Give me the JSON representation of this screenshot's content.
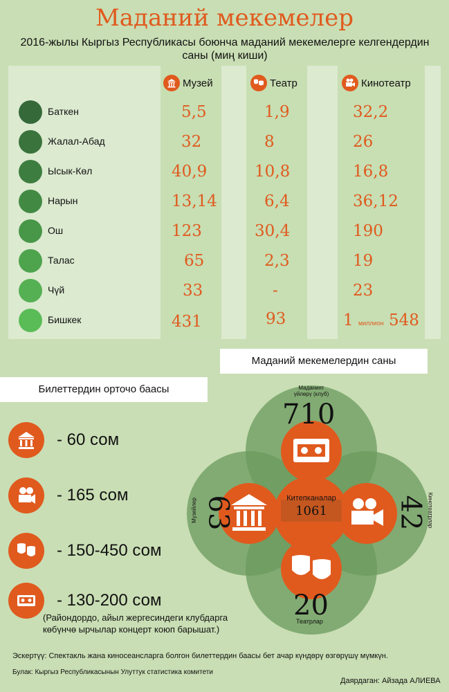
{
  "title": "Маданий мекемелер",
  "subtitle": "2016-жылы Кыргыз Республикасы боюнча маданий мекемелерге келгендердин саны (миң киши)",
  "columns": {
    "museum": "Музей",
    "theater": "Театр",
    "cinema": "Кинотеатр"
  },
  "rows": [
    {
      "region": "Баткен",
      "museum": "5,5",
      "theater": "1,9",
      "cinema": "32,2"
    },
    {
      "region": "Жалал-Абад",
      "museum": "32",
      "theater": "8",
      "cinema": "26"
    },
    {
      "region": "Ысык-Көл",
      "museum": "40,9",
      "theater": "10,8",
      "cinema": "16,8"
    },
    {
      "region": "Нарын",
      "museum": "13,14",
      "theater": "6,4",
      "cinema": "36,12"
    },
    {
      "region": "Ош",
      "museum": "123",
      "theater": "30,4",
      "cinema": "190"
    },
    {
      "region": "Талас",
      "museum": "65",
      "theater": "2,3",
      "cinema": "19"
    },
    {
      "region": "Чүй",
      "museum": "33",
      "theater": "-",
      "cinema": "23"
    },
    {
      "region": "Бишкек",
      "museum": "431",
      "theater": "93",
      "cinema_a": "1",
      "cinema_b": "миллион",
      "cinema_c": "548"
    }
  ],
  "dot_colors": [
    "#36693a",
    "#3a733c",
    "#3d7d3f",
    "#428a43",
    "#489647",
    "#4ea34d",
    "#55b053",
    "#5abc57"
  ],
  "counts": {
    "title": "Маданий мекемелердин саны",
    "clubs_label": "Маданият үйлөрү (клуб)",
    "clubs_value": "710",
    "museums_label": "Музейлер",
    "museums_value": "63",
    "cinemas_label": "Кинотеатрлар",
    "cinemas_value": "42",
    "theaters_label": "Театрлар",
    "theaters_value": "20",
    "libraries_label": "Китепканалар",
    "libraries_value": "1061"
  },
  "prices": {
    "title": "Билеттердин орточо баасы",
    "items": [
      {
        "icon": "museum-icon",
        "text": "- 60 сом"
      },
      {
        "icon": "cinema-camera-icon",
        "text": "- 165 сом"
      },
      {
        "icon": "theater-masks-icon",
        "text": "- 150-450 сом"
      },
      {
        "icon": "videotape-icon",
        "text": "- 130-200 сом"
      }
    ],
    "note": "(Райондордо, айыл жергесиндеги клубдарга көбүнчө ырчылар концерт коюп барышат.)"
  },
  "footnote": "Эскертүү: Спектакль жана киносеансларга болгон билеттердин баасы бет ачар күндөрү өзгөрүшү мүмкүн.",
  "source": "Булак: Кыргыз Республикасынын Улуттук статистика комитети",
  "author": "Даярдаган: Айзада АЛИЕВА",
  "colors": {
    "accent": "#e05a1e",
    "background": "#c9deb4",
    "circle": "#6a9a5e"
  }
}
